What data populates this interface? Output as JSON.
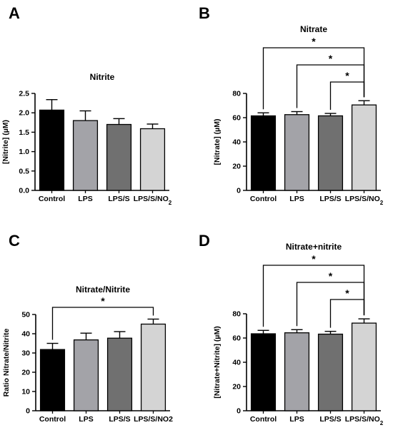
{
  "chart_data": [
    {
      "panel": "A",
      "type": "bar",
      "title": "Nitrite",
      "xlabel": "",
      "ylabel": "[Nitrite] (µM)",
      "categories": [
        "Control",
        "LPS",
        "LPS/S",
        "LPS/S/NO₂"
      ],
      "values": [
        2.07,
        1.8,
        1.7,
        1.59
      ],
      "errors": [
        0.27,
        0.25,
        0.15,
        0.12
      ],
      "ylim": [
        0,
        2.5
      ],
      "yticks": [
        "0.0",
        "0.5",
        "1.0",
        "1.5",
        "2.0",
        "2.5"
      ],
      "colors": [
        "#000000",
        "#a3a3a8",
        "#707070",
        "#d4d4d4"
      ],
      "significance": []
    },
    {
      "panel": "B",
      "type": "bar",
      "title": "Nitrate",
      "xlabel": "",
      "ylabel": "[Nitrate] (µM)",
      "categories": [
        "Control",
        "LPS",
        "LPS/S",
        "LPS/S/NO₂"
      ],
      "values": [
        61.5,
        62.5,
        61.5,
        70.5
      ],
      "errors": [
        2.5,
        2.5,
        2.0,
        3.5
      ],
      "ylim": [
        0,
        80
      ],
      "yticks": [
        "0",
        "20",
        "40",
        "60",
        "80"
      ],
      "colors": [
        "#000000",
        "#a3a3a8",
        "#707070",
        "#d4d4d4"
      ],
      "significance": [
        {
          "from": 0,
          "to": 3,
          "label": "*"
        },
        {
          "from": 1,
          "to": 3,
          "label": "*"
        },
        {
          "from": 2,
          "to": 3,
          "label": "*"
        }
      ]
    },
    {
      "panel": "C",
      "type": "bar",
      "title": "Nitrate/Nitrite",
      "xlabel": "",
      "ylabel": "Ratio Nitrate/Nitrite",
      "categories": [
        "Control",
        "LPS",
        "LPS/S",
        "LPS/S/NO2"
      ],
      "values": [
        31.8,
        36.8,
        37.7,
        45.0
      ],
      "errors": [
        3.2,
        3.5,
        3.4,
        2.6
      ],
      "ylim": [
        0,
        50
      ],
      "yticks": [
        "0",
        "10",
        "20",
        "30",
        "40",
        "50"
      ],
      "colors": [
        "#000000",
        "#a3a3a8",
        "#707070",
        "#d4d4d4"
      ],
      "significance": [
        {
          "from": 0,
          "to": 3,
          "label": "*"
        }
      ]
    },
    {
      "panel": "D",
      "type": "bar",
      "title": "Nitrate+nitrite",
      "xlabel": "",
      "ylabel": "[Nitrate+Nitrite] (µM)",
      "categories": [
        "Control",
        "LPS",
        "LPS/S",
        "LPS/S/NO₂"
      ],
      "values": [
        63.5,
        64.3,
        63.2,
        72.3
      ],
      "errors": [
        2.8,
        2.6,
        2.3,
        3.5
      ],
      "ylim": [
        0,
        80
      ],
      "yticks": [
        "0",
        "20",
        "40",
        "60",
        "80"
      ],
      "colors": [
        "#000000",
        "#a3a3a8",
        "#707070",
        "#d4d4d4"
      ],
      "significance": [
        {
          "from": 0,
          "to": 3,
          "label": "*"
        },
        {
          "from": 1,
          "to": 3,
          "label": "*"
        },
        {
          "from": 2,
          "to": 3,
          "label": "*"
        }
      ]
    }
  ]
}
